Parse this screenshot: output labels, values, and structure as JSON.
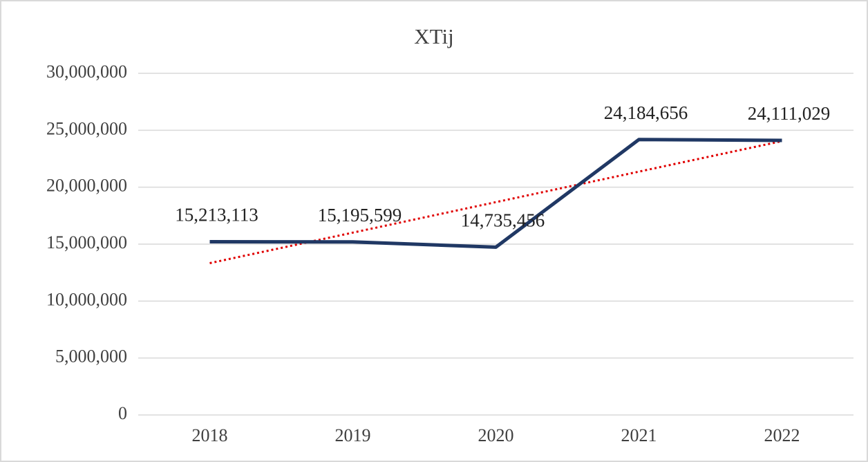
{
  "chart_data": {
    "type": "line",
    "title": "XTij",
    "categories": [
      "2018",
      "2019",
      "2020",
      "2021",
      "2022"
    ],
    "series": [
      {
        "color": "#203864",
        "values": [
          15213113,
          15195599,
          14735456,
          24184656,
          24111029
        ],
        "value_labels": [
          "15,213,113",
          "15,195,599",
          "14,735,456",
          "24,184,656",
          "24,111,029"
        ]
      }
    ],
    "ylim": [
      0,
      30000000
    ],
    "yticks": [
      0,
      {
        "value": 5000000,
        "label": "5,000,000"
      },
      {
        "value": 10000000,
        "label": "10,000,000"
      },
      {
        "value": 15000000,
        "label": "15,000,000"
      },
      {
        "value": 20000000,
        "label": "20,000,000"
      },
      {
        "value": 25000000,
        "label": "25,000,000"
      },
      {
        "value": 30000000,
        "label": "30,000,000"
      }
    ],
    "grid": true,
    "trendline": "linear",
    "trendline_color": "#e00000"
  }
}
